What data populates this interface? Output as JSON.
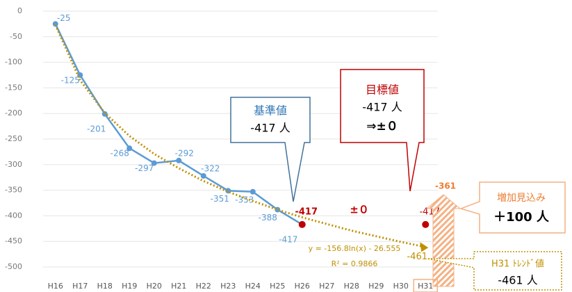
{
  "chart_data": {
    "type": "line",
    "categories": [
      "H16",
      "H17",
      "H18",
      "H19",
      "H20",
      "H21",
      "H22",
      "H23",
      "H24",
      "H25",
      "H26",
      "H27",
      "H28",
      "H29",
      "H30",
      "H31"
    ],
    "ylim": [
      -500,
      0
    ],
    "yticks": [
      0,
      -50,
      -100,
      -150,
      -200,
      -250,
      -300,
      -350,
      -400,
      -450,
      -500
    ],
    "grid": true,
    "series": [
      {
        "color": "#5b9bd5",
        "style": "solid",
        "values": [
          -25,
          -125,
          -201,
          -268,
          -297,
          -292,
          -322,
          -351,
          -353,
          -388,
          -417,
          null,
          null,
          null,
          null,
          null
        ]
      },
      {
        "color": "#c00000",
        "style": "dashed",
        "values": [
          null,
          null,
          null,
          null,
          null,
          null,
          null,
          null,
          null,
          null,
          -417,
          null,
          null,
          null,
          null,
          -417
        ]
      },
      {
        "color": "#bf9000",
        "style": "dotted",
        "values": [
          -27,
          -135,
          -199,
          -244,
          -279,
          -307,
          -332,
          -353,
          -371,
          -388,
          -403,
          -416,
          -429,
          -440,
          -451,
          -461
        ]
      }
    ],
    "annotations": {
      "base_label": "基準値",
      "base_value": "-417 人",
      "target_label": "目標値",
      "target_value": "-417 人",
      "target_change": "⇒±０",
      "diff": "±０",
      "increase_top": "-361",
      "increase_label": "増加見込み",
      "increase_value": "＋100 人",
      "trend_label": "H31 ﾄﾚﾝﾄﾞ値",
      "trend_value": "-461 人",
      "equation": "y = -156.8ln(x) - 26.555",
      "r2": "R² = 0.9866"
    }
  }
}
